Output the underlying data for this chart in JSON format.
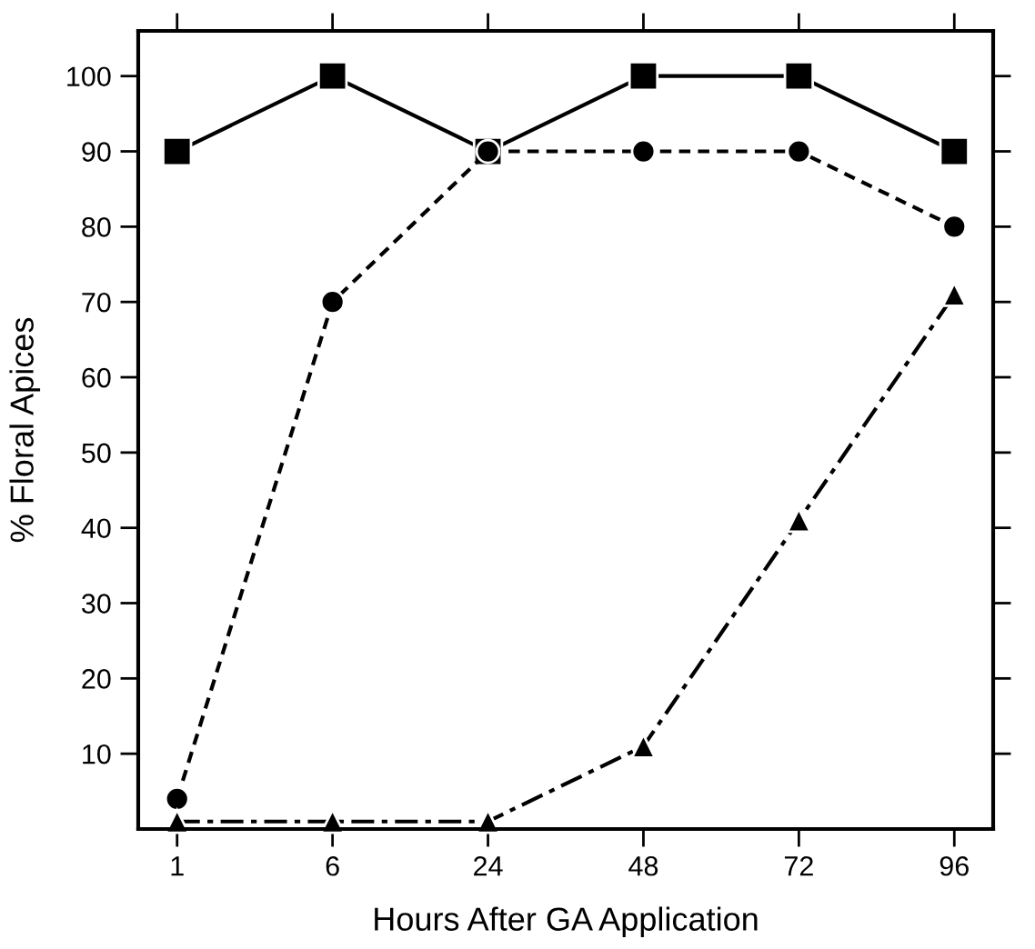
{
  "chart_data": {
    "type": "line",
    "xlabel": "Hours After GA Application",
    "ylabel": "% Floral Apices",
    "categories": [
      "1",
      "6",
      "24",
      "48",
      "72",
      "96"
    ],
    "ylim": [
      0,
      106
    ],
    "yticks": [
      10,
      20,
      30,
      40,
      50,
      60,
      70,
      80,
      90,
      100
    ],
    "grid": false,
    "series": [
      {
        "color": "#000000",
        "marker": "square",
        "line_style": "solid",
        "values": [
          90,
          100,
          90,
          100,
          100,
          90
        ]
      },
      {
        "color": "#000000",
        "marker": "circle",
        "line_style": "dashed",
        "values": [
          4,
          70,
          90,
          90,
          90,
          80
        ]
      },
      {
        "color": "#000000",
        "marker": "triangle",
        "line_style": "dashdot",
        "values": [
          1,
          1,
          1,
          11,
          41,
          71
        ]
      }
    ]
  }
}
